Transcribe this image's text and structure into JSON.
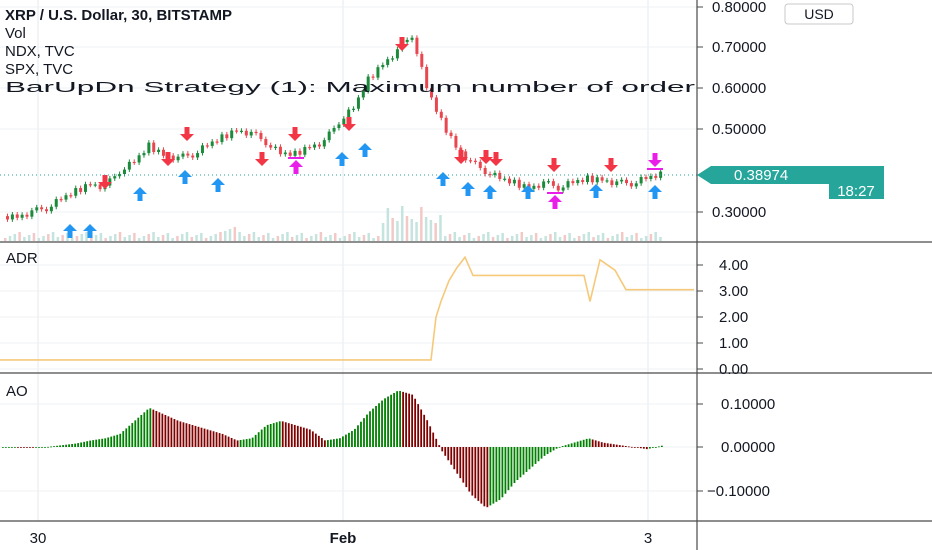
{
  "legend": {
    "symbol": "XRP / U.S. Dollar, 30, BITSTAMP",
    "line2": "Vol",
    "line3": "NDX, TVC",
    "line4": "SPX, TVC",
    "line5": "BarUpDn Strategy (1): Maximum number of order"
  },
  "currency_button": "USD",
  "last_price": "0.38974",
  "countdown": "18:27",
  "time_labels": [
    "30",
    "Feb",
    "3"
  ],
  "panes": {
    "price": {
      "label": "",
      "ticks": [
        "0.80000",
        "0.70000",
        "0.60000",
        "0.50000",
        "0.30000"
      ]
    },
    "adr": {
      "label": "ADR",
      "ticks": [
        "4.00",
        "3.00",
        "2.00",
        "1.00",
        "0.00"
      ]
    },
    "ao": {
      "label": "AO",
      "ticks": [
        "0.10000",
        "0.00000",
        "−0.10000"
      ]
    }
  },
  "colors": {
    "up": "#26a69a",
    "down": "#ef5350",
    "bull_candle": "#1b8a3a",
    "bear_candle": "#e8474f",
    "ao_up": "#008000",
    "ao_down": "#800000",
    "adr_line": "#f6c97a",
    "buy_arrow": "#2196f3",
    "sell_arrow": "#f23645",
    "close_arrow": "#e91ee9",
    "price_tag": "#26a69a",
    "last_price_line": "#26a69a"
  },
  "chart_data": [
    {
      "type": "candlestick",
      "title": "XRP / U.S. Dollar, 30, BITSTAMP",
      "ylim": [
        0.27,
        0.82
      ],
      "x_ticks": [
        "30",
        "Feb",
        "3"
      ],
      "y_ticks": [
        0.3,
        0.5,
        0.6,
        0.7,
        0.8
      ],
      "approx_closes": [
        0.29,
        0.29,
        0.3,
        0.31,
        0.33,
        0.35,
        0.37,
        0.36,
        0.4,
        0.42,
        0.46,
        0.44,
        0.43,
        0.44,
        0.46,
        0.48,
        0.5,
        0.49,
        0.47,
        0.44,
        0.44,
        0.46,
        0.47,
        0.52,
        0.55,
        0.62,
        0.66,
        0.69,
        0.73,
        0.6,
        0.52,
        0.46,
        0.42,
        0.4,
        0.38,
        0.37,
        0.36,
        0.37,
        0.36,
        0.37,
        0.38,
        0.38,
        0.37,
        0.37,
        0.38,
        0.39
      ],
      "last": 0.38974
    },
    {
      "type": "line",
      "name": "ADR",
      "ylim": [
        0,
        4.5
      ],
      "y_ticks": [
        0,
        1,
        2,
        3,
        4
      ],
      "approx_values": [
        0.35,
        0.35,
        0.35,
        0.35,
        0.35,
        0.35,
        0.35,
        0.35,
        0.35,
        0.35,
        0.35,
        0.35,
        0.35,
        0.35,
        2.0,
        2.6,
        3.4,
        3.9,
        4.3,
        3.6,
        3.6,
        3.6,
        3.6,
        3.6,
        3.6,
        2.6,
        4.2,
        3.8,
        3.05,
        3.05,
        3.05
      ]
    },
    {
      "type": "bar",
      "name": "AO",
      "ylim": [
        -0.15,
        0.14
      ],
      "y_ticks": [
        -0.1,
        0.0,
        0.1
      ],
      "approx_values": [
        0.0,
        0.0,
        -0.002,
        0.0,
        0.004,
        0.008,
        0.015,
        0.02,
        0.03,
        0.06,
        0.09,
        0.075,
        0.06,
        0.05,
        0.04,
        0.03,
        0.015,
        0.02,
        0.05,
        0.06,
        0.05,
        0.04,
        0.015,
        0.02,
        0.04,
        0.08,
        0.11,
        0.13,
        0.12,
        0.06,
        -0.01,
        -0.06,
        -0.11,
        -0.14,
        -0.12,
        -0.08,
        -0.05,
        -0.02,
        0.0,
        0.01,
        0.02,
        0.01,
        0.005,
        0.0,
        -0.005,
        0.003
      ]
    }
  ]
}
